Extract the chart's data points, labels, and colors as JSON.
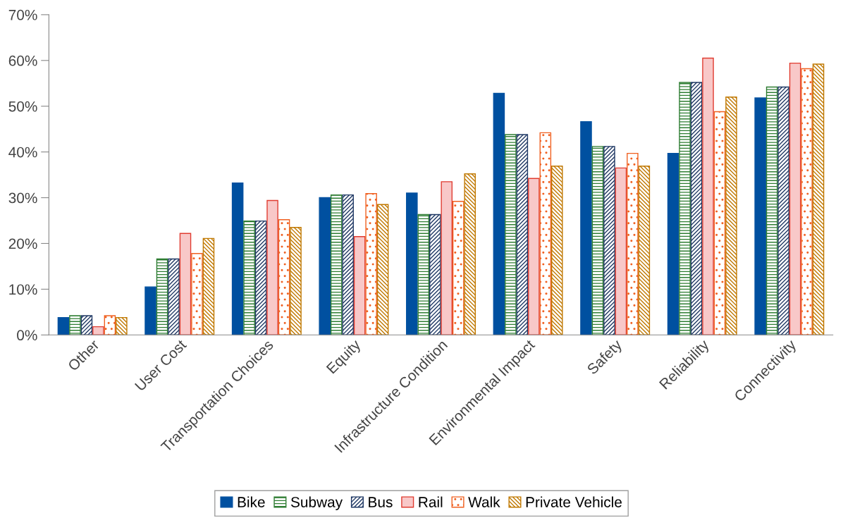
{
  "chart_data": {
    "type": "bar",
    "categories": [
      "Other",
      "User Cost",
      "Transportation Choices",
      "Equity",
      "Infrastructure Condition",
      "Environmental Impact",
      "Safety",
      "Reliability",
      "Connectivity"
    ],
    "series": [
      {
        "name": "Bike",
        "color": "#0050a0",
        "values": [
          3.8,
          10.5,
          33.2,
          30.0,
          31.0,
          52.8,
          46.6,
          39.7,
          51.8
        ]
      },
      {
        "name": "Subway",
        "color": "#2e7d32",
        "values": [
          4.2,
          16.6,
          24.9,
          30.6,
          26.3,
          43.8,
          41.2,
          55.2,
          54.2
        ]
      },
      {
        "name": "Bus",
        "color": "#1f3864",
        "values": [
          4.2,
          16.6,
          24.9,
          30.6,
          26.3,
          43.8,
          41.2,
          55.2,
          54.2
        ]
      },
      {
        "name": "Rail",
        "color": "#e03c31",
        "values": [
          1.8,
          22.2,
          29.4,
          21.5,
          33.5,
          34.2,
          36.5,
          60.5,
          59.4
        ]
      },
      {
        "name": "Walk",
        "color": "#f06020",
        "values": [
          4.2,
          17.8,
          25.2,
          30.9,
          29.2,
          44.2,
          39.7,
          48.8,
          58.2
        ]
      },
      {
        "name": "Private Vehicle",
        "color": "#c07800",
        "values": [
          3.8,
          21.1,
          23.5,
          28.5,
          35.2,
          36.9,
          36.9,
          52.0,
          59.2
        ]
      }
    ],
    "ylim": [
      0,
      70
    ],
    "yticks": [
      {
        "value": 0,
        "label": "0%"
      },
      {
        "value": 10,
        "label": "10%"
      },
      {
        "value": 20,
        "label": "20%"
      },
      {
        "value": 30,
        "label": "30%"
      },
      {
        "value": 40,
        "label": "40%"
      },
      {
        "value": 50,
        "label": "50%"
      },
      {
        "value": 60,
        "label": "60%"
      },
      {
        "value": 70,
        "label": "70%"
      }
    ],
    "grid": false,
    "legend": "bottom"
  }
}
